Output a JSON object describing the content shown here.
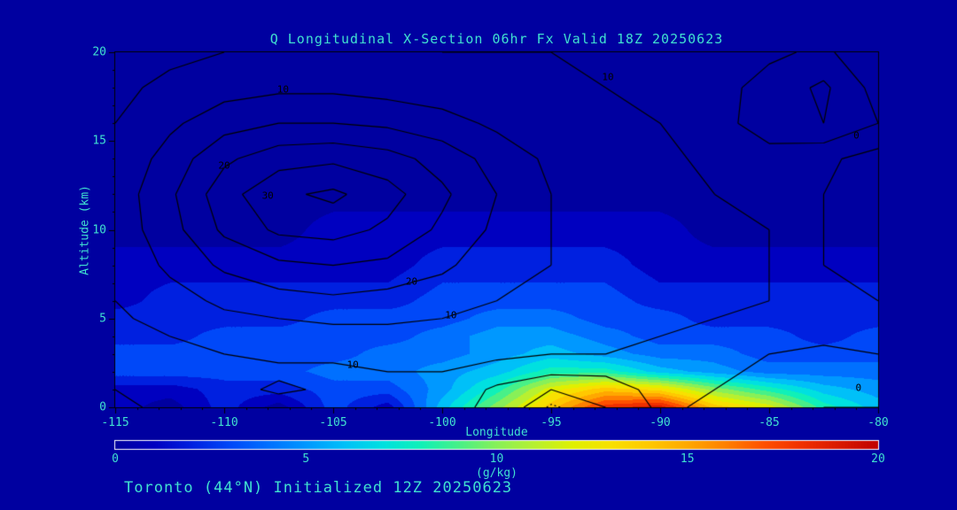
{
  "colors": {
    "background": "#0000A0",
    "text": "#40E0D0",
    "contour": "#000000",
    "frame": "#000000",
    "colorbar_border": "#FFFFFF"
  },
  "chart_data": {
    "type": "heatmap",
    "title": "Q Longitudinal X-Section 06hr  Fx Valid 18Z 20250623",
    "caption": "Toronto (44°N) Initialized 12Z 20250623",
    "xlabel": "Longitude",
    "ylabel": "Altitude (km)",
    "xlim": [
      -115,
      -80
    ],
    "ylim": [
      0,
      20
    ],
    "x_major_ticks": [
      -115,
      -110,
      -105,
      -100,
      -95,
      -90,
      -85,
      -80
    ],
    "x_minor_step": 1,
    "y_major_ticks": [
      0,
      5,
      10,
      15,
      20
    ],
    "y_minor_step": 1,
    "colorbar": {
      "label": "(g/kg)",
      "range": [
        0,
        20
      ],
      "ticks": [
        0,
        5,
        10,
        15,
        20
      ],
      "colors": [
        "#0000A0",
        "#0000C0",
        "#0020E0",
        "#0048F8",
        "#0070FF",
        "#0098FF",
        "#00C0F8",
        "#00E0E0",
        "#10F0B8",
        "#48F088",
        "#88F058",
        "#B8F030",
        "#E0F000",
        "#F8E000",
        "#FFC800",
        "#FFA800",
        "#FF8000",
        "#FF5000",
        "#F03000",
        "#D81800",
        "#C00000"
      ]
    },
    "x_longitudes": [
      -115,
      -112.5,
      -110,
      -107.5,
      -105,
      -102.5,
      -100,
      -97.5,
      -95,
      -92.5,
      -90,
      -87.5,
      -85,
      -82.5,
      -80
    ],
    "y_altitudes_km": [
      0,
      1,
      2,
      3,
      4,
      5,
      6,
      8,
      10,
      12,
      14,
      16,
      18,
      20
    ],
    "q_values_gkg": [
      [
        1,
        0,
        2,
        0,
        3,
        1,
        6,
        10,
        14,
        18,
        19,
        14,
        12,
        8,
        6
      ],
      [
        1,
        1,
        2,
        2,
        3,
        3,
        5,
        8,
        12,
        14,
        13,
        10,
        8,
        6,
        5
      ],
      [
        3,
        3,
        3,
        3,
        4,
        4,
        5,
        6,
        8,
        8,
        6,
        5,
        4,
        4,
        4
      ],
      [
        3,
        3,
        3,
        3,
        3,
        4,
        4,
        5,
        6,
        5,
        4,
        4,
        3,
        3,
        3
      ],
      [
        2,
        2,
        3,
        3,
        3,
        3,
        4,
        5,
        5,
        4,
        3,
        3,
        3,
        2,
        3
      ],
      [
        2,
        2,
        2,
        2,
        3,
        3,
        3,
        4,
        4,
        3,
        3,
        2,
        2,
        2,
        2
      ],
      [
        1,
        2,
        2,
        2,
        2,
        2,
        3,
        3,
        3,
        3,
        2,
        2,
        2,
        2,
        2
      ],
      [
        1,
        1,
        1,
        1,
        1,
        1,
        2,
        2,
        2,
        2,
        1,
        1,
        1,
        1,
        1
      ],
      [
        0,
        0,
        0,
        0,
        1,
        1,
        1,
        1,
        1,
        1,
        1,
        0,
        0,
        0,
        0
      ],
      [
        0,
        0,
        0,
        0,
        0,
        0,
        0,
        0,
        0,
        0,
        0,
        0,
        0,
        0,
        0
      ],
      [
        0,
        0,
        0,
        0,
        0,
        0,
        0,
        0,
        0,
        0,
        0,
        0,
        0,
        0,
        0
      ],
      [
        0,
        0,
        0,
        0,
        0,
        0,
        0,
        0,
        0,
        0,
        0,
        0,
        0,
        0,
        0
      ],
      [
        0,
        0,
        0,
        0,
        0,
        0,
        0,
        0,
        0,
        0,
        0,
        0,
        0,
        0,
        0
      ],
      [
        0,
        0,
        0,
        0,
        0,
        0,
        0,
        0,
        0,
        0,
        0,
        0,
        0,
        0,
        0
      ]
    ],
    "overlay_contours": {
      "description": "black line contours overlaid on fill, labeled values",
      "grid": [
        [
          4,
          6,
          7,
          7,
          7,
          8,
          8,
          3,
          -3,
          0,
          6,
          4,
          2,
          0,
          0
        ],
        [
          5,
          7,
          8,
          11,
          9,
          9,
          9,
          4,
          0,
          2,
          7,
          5,
          3,
          1,
          1
        ],
        [
          6,
          8,
          9,
          9,
          9,
          10,
          10,
          8,
          6,
          6,
          8,
          6,
          4,
          2,
          3
        ],
        [
          7,
          9,
          10,
          11,
          11,
          11,
          11,
          11,
          10,
          10,
          9,
          7,
          5,
          4,
          5
        ],
        [
          8,
          10,
          12,
          13,
          13,
          13,
          13,
          12,
          12,
          11,
          10,
          9,
          7,
          6,
          7
        ],
        [
          9,
          12,
          14,
          15,
          16,
          16,
          15,
          14,
          13,
          12,
          11,
          10,
          9,
          8,
          9
        ],
        [
          10,
          13,
          16,
          18,
          19,
          18,
          17,
          15,
          14,
          13,
          12,
          11,
          10,
          9,
          10
        ],
        [
          11,
          16,
          21,
          24,
          25,
          24,
          21,
          17,
          15,
          13,
          12,
          11,
          10,
          10,
          11
        ],
        [
          12,
          18,
          26,
          31,
          32,
          29,
          24,
          19,
          15,
          13,
          12,
          11,
          10,
          10,
          12
        ],
        [
          12,
          19,
          28,
          34,
          36,
          32,
          26,
          20,
          15,
          13,
          12,
          10,
          9,
          10,
          12
        ],
        [
          11,
          17,
          24,
          28,
          29,
          27,
          23,
          18,
          14,
          12,
          11,
          9,
          8,
          9,
          12
        ],
        [
          10,
          14,
          18,
          20,
          20,
          19,
          17,
          14,
          12,
          11,
          10,
          8,
          1,
          0,
          5
        ],
        [
          9,
          11,
          13,
          14,
          14,
          13,
          12,
          11,
          11,
          10,
          9,
          7,
          3,
          -1,
          7
        ],
        [
          8,
          9,
          10,
          11,
          11,
          11,
          10,
          10,
          10,
          9,
          8,
          7,
          6,
          4,
          9
        ]
      ],
      "solid_levels": [
        0,
        5,
        10,
        15,
        20,
        25,
        30,
        35
      ],
      "dashed_levels": [
        -2.5
      ],
      "labels": [
        {
          "text": "10",
          "lon": -107.3,
          "alt": 17.9
        },
        {
          "text": "20",
          "lon": -110.0,
          "alt": 13.6
        },
        {
          "text": "30",
          "lon": -108.0,
          "alt": 11.9
        },
        {
          "text": "20",
          "lon": -101.4,
          "alt": 7.1
        },
        {
          "text": "10",
          "lon": -99.6,
          "alt": 5.2
        },
        {
          "text": "10",
          "lon": -104.1,
          "alt": 2.4
        },
        {
          "text": "10",
          "lon": -92.4,
          "alt": 18.6
        },
        {
          "text": "0",
          "lon": -81.0,
          "alt": 15.3
        },
        {
          "text": "0",
          "lon": -80.9,
          "alt": 1.1
        }
      ]
    }
  }
}
